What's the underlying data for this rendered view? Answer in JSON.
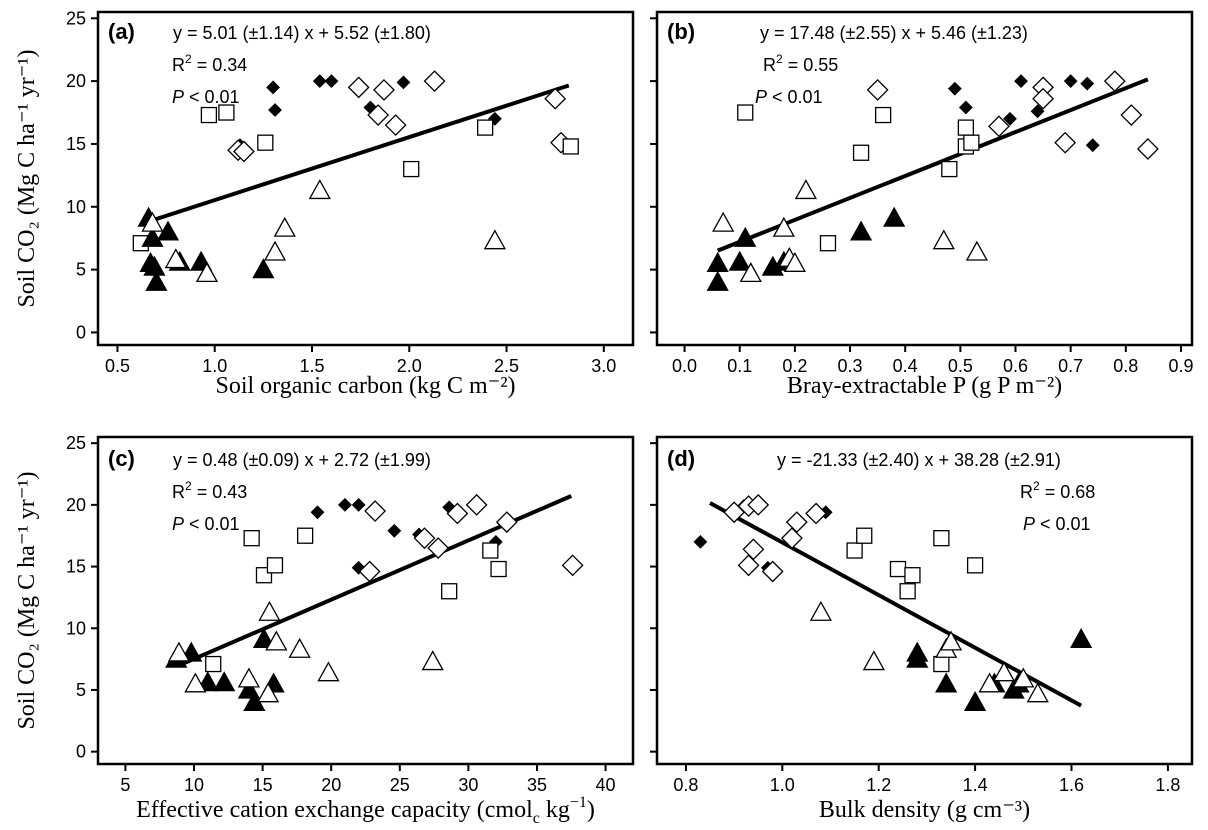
{
  "chart_data": [
    {
      "type": "scatter",
      "panel_label": "(a)",
      "equation": "y = 5.01 (±1.14) x + 5.52 (±1.80)",
      "r2_prefix": "R",
      "r2_sup": "2",
      "r2_value": " = 0.34",
      "p_symbol": "P",
      "p_value": " < 0.01",
      "xlabel": "Soil organic carbon (kg C m⁻²)",
      "ylabel": "Soil CO₂ (Mg C ha⁻¹ yr⁻¹)",
      "xlim": [
        0.4,
        3.15
      ],
      "ylim": [
        -1,
        25.5
      ],
      "xticks": [
        "0.5",
        "1.0",
        "1.5",
        "2.0",
        "2.5",
        "3.0"
      ],
      "xtick_values": [
        0.5,
        1.0,
        1.5,
        2.0,
        2.5,
        3.0
      ],
      "yticks": [
        "0",
        "5",
        "10",
        "15",
        "20",
        "25"
      ],
      "ytick_values": [
        0,
        5,
        10,
        15,
        20,
        25
      ],
      "fit_line": {
        "x": [
          0.68,
          2.82
        ],
        "y": [
          8.93,
          19.65
        ]
      },
      "series": [
        {
          "marker": "diamond-filled",
          "x": [
            1.13,
            1.3,
            1.31,
            1.54,
            1.6,
            1.8,
            1.97,
            2.44
          ],
          "y": [
            14.9,
            19.5,
            17.7,
            20.0,
            20.0,
            17.9,
            19.9,
            17.0
          ]
        },
        {
          "marker": "diamond-open",
          "x": [
            1.12,
            1.15,
            1.74,
            1.84,
            1.87,
            1.93,
            2.13,
            2.75,
            2.78
          ],
          "y": [
            14.5,
            14.4,
            19.5,
            17.3,
            19.3,
            16.5,
            20.0,
            18.6,
            15.1
          ]
        },
        {
          "marker": "square-open",
          "x": [
            0.62,
            0.97,
            1.06,
            1.26,
            2.01,
            2.39,
            2.83
          ],
          "y": [
            7.1,
            17.3,
            17.5,
            15.1,
            13.0,
            16.3,
            14.8
          ]
        },
        {
          "marker": "triangle-filled",
          "x": [
            0.66,
            0.67,
            0.68,
            0.69,
            0.7,
            0.76,
            0.82,
            0.93,
            1.25
          ],
          "y": [
            9.1,
            5.5,
            7.5,
            5.2,
            4.0,
            8.0,
            5.6,
            5.6,
            5.0
          ]
        },
        {
          "marker": "triangle-open",
          "x": [
            0.68,
            0.8,
            0.96,
            1.31,
            1.36,
            1.54,
            2.44
          ],
          "y": [
            8.7,
            5.8,
            4.7,
            6.4,
            8.3,
            11.3,
            7.3
          ]
        }
      ]
    },
    {
      "type": "scatter",
      "panel_label": "(b)",
      "equation": "y = 17.48 (±2.55) x + 5.46 (±1.23)",
      "r2_prefix": "R",
      "r2_sup": "2",
      "r2_value": " = 0.55",
      "p_symbol": "P",
      "p_value": " < 0.01",
      "xlabel": "Bray-extractable P (g P m⁻²)",
      "ylabel": "",
      "xlim": [
        -0.05,
        0.92
      ],
      "ylim": [
        -1,
        25.5
      ],
      "xticks": [
        "0.0",
        "0.1",
        "0.2",
        "0.3",
        "0.4",
        "0.5",
        "0.6",
        "0.7",
        "0.8",
        "0.9"
      ],
      "xtick_values": [
        0.0,
        0.1,
        0.2,
        0.3,
        0.4,
        0.5,
        0.6,
        0.7,
        0.8,
        0.9
      ],
      "yticks": [],
      "ytick_values": [
        0,
        5,
        10,
        15,
        20,
        25
      ],
      "fit_line": {
        "x": [
          0.06,
          0.84
        ],
        "y": [
          6.51,
          20.14
        ]
      },
      "series": [
        {
          "marker": "diamond-filled",
          "x": [
            0.49,
            0.51,
            0.59,
            0.61,
            0.64,
            0.7,
            0.73,
            0.74
          ],
          "y": [
            19.4,
            17.9,
            17.0,
            20.0,
            17.6,
            20.0,
            19.8,
            14.9
          ]
        },
        {
          "marker": "diamond-open",
          "x": [
            0.35,
            0.57,
            0.65,
            0.65,
            0.69,
            0.78,
            0.81,
            0.84
          ],
          "y": [
            19.3,
            16.4,
            19.5,
            18.6,
            15.1,
            20.0,
            17.3,
            14.6
          ]
        },
        {
          "marker": "square-open",
          "x": [
            0.11,
            0.26,
            0.32,
            0.36,
            0.48,
            0.51,
            0.51,
            0.52
          ],
          "y": [
            17.5,
            7.1,
            14.3,
            17.3,
            13.0,
            16.3,
            14.8,
            15.1
          ]
        },
        {
          "marker": "triangle-filled",
          "x": [
            0.06,
            0.06,
            0.1,
            0.11,
            0.16,
            0.18,
            0.32,
            0.38
          ],
          "y": [
            5.5,
            4.0,
            5.6,
            7.5,
            5.2,
            5.6,
            8.0,
            9.1
          ]
        },
        {
          "marker": "triangle-open",
          "x": [
            0.07,
            0.12,
            0.18,
            0.19,
            0.2,
            0.22,
            0.47,
            0.53
          ],
          "y": [
            8.7,
            4.7,
            8.3,
            5.9,
            5.5,
            11.3,
            7.3,
            6.4
          ]
        }
      ]
    },
    {
      "type": "scatter",
      "panel_label": "(c)",
      "equation": "y = 0.48 (±0.09) x + 2.72 (±1.99)",
      "r2_prefix": "R",
      "r2_sup": "2",
      "r2_value": " = 0.43",
      "p_symbol": "P",
      "p_value": " < 0.01",
      "xlabel": "Effective cation exchange capacity (cmolₑ kg⁻¹)",
      "xlabel_main": "Effective cation exchange capacity (cmol",
      "xlabel_sub": "c",
      "xlabel_tail": " kg",
      "xlabel_sup": "−1",
      "xlabel_end": ")",
      "ylabel": "Soil CO₂ (Mg C ha⁻¹ yr⁻¹)",
      "xlim": [
        3,
        42
      ],
      "ylim": [
        -1,
        25.5
      ],
      "xticks": [
        "5",
        "10",
        "15",
        "20",
        "25",
        "30",
        "35",
        "40"
      ],
      "xtick_values": [
        5,
        10,
        15,
        20,
        25,
        30,
        35,
        40
      ],
      "yticks": [
        "0",
        "5",
        "10",
        "15",
        "20",
        "25"
      ],
      "ytick_values": [
        0,
        5,
        10,
        15,
        20,
        25
      ],
      "fit_line": {
        "x": [
          9.3,
          37.5
        ],
        "y": [
          7.18,
          20.72
        ]
      },
      "series": [
        {
          "marker": "diamond-filled",
          "x": [
            19,
            21,
            22,
            22,
            24.6,
            26.4,
            28.6,
            32
          ],
          "y": [
            19.4,
            20.0,
            20.0,
            14.9,
            17.9,
            17.6,
            19.8,
            17.0
          ]
        },
        {
          "marker": "diamond-open",
          "x": [
            22.8,
            23.2,
            26.8,
            27.8,
            29.2,
            30.6,
            32.8,
            37.6
          ],
          "y": [
            14.6,
            19.5,
            17.3,
            16.5,
            19.3,
            20.0,
            18.6,
            15.1
          ]
        },
        {
          "marker": "square-open",
          "x": [
            11.4,
            14.2,
            15.1,
            15.9,
            18.1,
            28.6,
            31.6,
            32.2
          ],
          "y": [
            7.1,
            17.3,
            14.3,
            15.1,
            17.5,
            13.0,
            16.3,
            14.8
          ]
        },
        {
          "marker": "triangle-filled",
          "x": [
            8.7,
            9.8,
            11.0,
            12.2,
            14.0,
            14.4,
            15.1,
            15.8
          ],
          "y": [
            7.5,
            8.0,
            5.6,
            5.6,
            5.0,
            4.0,
            9.1,
            5.5
          ]
        },
        {
          "marker": "triangle-open",
          "x": [
            8.9,
            10.1,
            14.0,
            15.4,
            15.5,
            16.0,
            17.7,
            19.8,
            27.4
          ],
          "y": [
            8.0,
            5.5,
            5.9,
            4.7,
            11.3,
            8.9,
            8.3,
            6.4,
            7.3
          ]
        }
      ]
    },
    {
      "type": "scatter",
      "panel_label": "(d)",
      "equation": "y = -21.33 (±2.40) x + 38.28 (±2.91)",
      "r2_prefix": "R",
      "r2_sup": "2",
      "r2_value": " = 0.68",
      "p_symbol": "P",
      "p_value": " < 0.01",
      "xlabel": "Bulk density (g cm⁻³)",
      "ylabel": "",
      "xlim": [
        0.74,
        1.85
      ],
      "ylim": [
        -1,
        25.5
      ],
      "xticks": [
        "0.8",
        "1.0",
        "1.2",
        "1.4",
        "1.6",
        "1.8"
      ],
      "xtick_values": [
        0.8,
        1.0,
        1.2,
        1.4,
        1.6,
        1.8
      ],
      "yticks": [],
      "ytick_values": [
        0,
        5,
        10,
        15,
        20,
        25
      ],
      "fit_line": {
        "x": [
          0.85,
          1.62
        ],
        "y": [
          20.15,
          3.73
        ]
      },
      "series": [
        {
          "marker": "diamond-filled",
          "x": [
            0.83,
            0.92,
            0.95,
            1.02,
            1.09,
            0.97
          ],
          "y": [
            17.0,
            19.9,
            20.0,
            17.6,
            19.4,
            14.9
          ]
        },
        {
          "marker": "diamond-open",
          "x": [
            0.9,
            0.93,
            0.94,
            0.93,
            0.95,
            0.98,
            1.02,
            1.03,
            1.07
          ],
          "y": [
            19.4,
            15.1,
            16.4,
            19.9,
            20.0,
            14.6,
            17.3,
            18.6,
            19.3
          ]
        },
        {
          "marker": "square-open",
          "x": [
            1.15,
            1.17,
            1.24,
            1.26,
            1.27,
            1.33,
            1.33,
            1.4
          ],
          "y": [
            16.3,
            17.5,
            14.8,
            13.0,
            14.3,
            17.3,
            7.1,
            15.1
          ]
        },
        {
          "marker": "triangle-filled",
          "x": [
            1.28,
            1.28,
            1.34,
            1.4,
            1.44,
            1.48,
            1.49,
            1.62
          ],
          "y": [
            8.0,
            7.5,
            5.5,
            4.0,
            5.5,
            5.0,
            5.5,
            9.1
          ]
        },
        {
          "marker": "triangle-open",
          "x": [
            1.08,
            1.19,
            1.34,
            1.35,
            1.43,
            1.46,
            1.5,
            1.53
          ],
          "y": [
            11.3,
            7.3,
            8.3,
            8.9,
            5.5,
            6.4,
            5.9,
            4.7
          ]
        }
      ]
    }
  ]
}
